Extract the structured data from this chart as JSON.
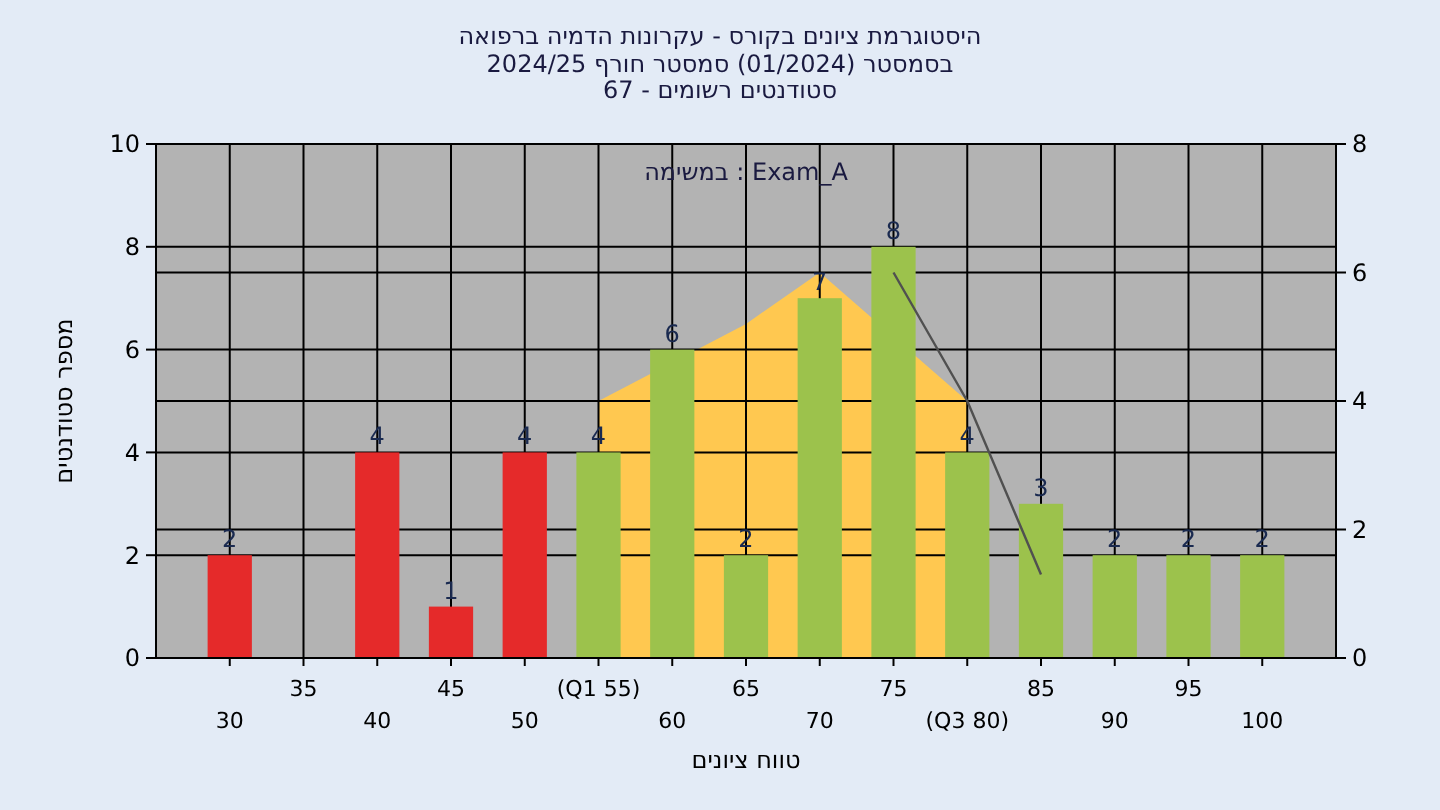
{
  "chart_data": {
    "type": "bar",
    "title": "היסטוגרמת ציונים בקורס - עקרונות הדמיה ברפואה",
    "subtitle": "בסמסטר  (01/2024)  סמסטר חורף 2024/25\nסטודנטים רשומים - 67",
    "xlabel": "טווח ציונים",
    "ylabel": "מספר סטודנטים",
    "annotations": [
      "במשימה : Exam_A"
    ],
    "categories": [
      "30",
      "35",
      "40",
      "45",
      "50",
      "(Q1 55)",
      "60",
      "65",
      "70",
      "75",
      "(Q3 80)",
      "85",
      "90",
      "95",
      "100"
    ],
    "series": [
      {
        "type": "area",
        "axis": "y2",
        "color": "#ffc850",
        "values": [
          null,
          null,
          null,
          null,
          null,
          4,
          null,
          5.2,
          6,
          null,
          4,
          null,
          null,
          null,
          null
        ]
      },
      {
        "type": "line",
        "axis": "y2",
        "color": "#505050",
        "values": [
          null,
          null,
          null,
          null,
          null,
          null,
          null,
          null,
          null,
          6,
          4,
          1.3,
          null,
          null,
          null
        ]
      },
      {
        "values": [
          2,
          null,
          4,
          1,
          4,
          4,
          6,
          2,
          7,
          8,
          4,
          3,
          2,
          2,
          2
        ],
        "value_labels": [
          "2",
          null,
          "4",
          "1",
          "4",
          "4",
          "6",
          "2",
          "7",
          "8",
          "4",
          "3",
          "2",
          "2",
          "2"
        ],
        "colors": [
          "#e52a2a",
          null,
          "#e52a2a",
          "#e52a2a",
          "#e52a2a",
          "#9cc24c",
          "#9cc24c",
          "#9cc24c",
          "#9cc24c",
          "#9cc24c",
          "#9cc24c",
          "#9cc24c",
          "#9cc24c",
          "#9cc24c",
          "#9cc24c"
        ]
      }
    ],
    "ylim": [
      0,
      10
    ],
    "yticks": [
      0,
      2,
      4,
      6,
      8,
      10
    ],
    "y2lim": [
      0,
      8
    ],
    "y2ticks": [
      0,
      2,
      4,
      6,
      8
    ],
    "grid": true
  }
}
